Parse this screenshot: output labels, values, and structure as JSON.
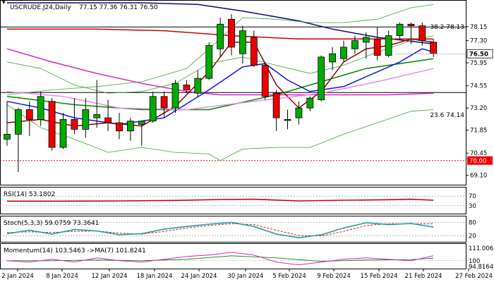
{
  "header": {
    "symbol": "USCRUDE.J24,Daily",
    "ohlc": "77.15 77.36 76.31 76.50"
  },
  "chart_data": {
    "type": "candlestick",
    "price_axis": {
      "ylim": [
        68.7,
        79.6
      ],
      "ticks": [
        "78.15",
        "77.30",
        "75.95",
        "74.55",
        "73.20",
        "71.85",
        "70.45",
        "69.10"
      ],
      "current_price_label": "76.50",
      "marker_label": "70.00"
    },
    "x_axis": {
      "date_labels": [
        "2 Jan 2024",
        "8 Jan 2024",
        "12 Jan 2024",
        "18 Jan 2024",
        "24 Jan 2024",
        "30 Jan 2024",
        "5 Feb 2024",
        "9 Feb 2024",
        "15 Feb 2024",
        "21 Feb 2024",
        "27 Feb 2024"
      ]
    },
    "levels": [
      {
        "label": "38.2 78.13",
        "value": 78.13,
        "color": "#000000"
      },
      {
        "label": "23.6 74.14",
        "value": 74.14,
        "color": "#000000"
      },
      {
        "label": "",
        "value": 70.0,
        "color": "#dd0000"
      }
    ],
    "candles": [
      {
        "o": 71.3,
        "h": 73.6,
        "l": 70.9,
        "c": 71.6
      },
      {
        "o": 71.6,
        "h": 73.2,
        "l": 69.3,
        "c": 73.1
      },
      {
        "o": 73.1,
        "h": 73.6,
        "l": 71.5,
        "c": 72.5
      },
      {
        "o": 72.5,
        "h": 74.2,
        "l": 72.1,
        "c": 73.9
      },
      {
        "o": 73.6,
        "h": 73.8,
        "l": 70.6,
        "c": 70.8
      },
      {
        "o": 70.8,
        "h": 72.9,
        "l": 70.7,
        "c": 72.5
      },
      {
        "o": 72.5,
        "h": 73.8,
        "l": 71.6,
        "c": 71.9
      },
      {
        "o": 71.9,
        "h": 73.8,
        "l": 71.4,
        "c": 73.1
      },
      {
        "o": 72.6,
        "h": 74.9,
        "l": 72.0,
        "c": 72.8
      },
      {
        "o": 72.6,
        "h": 73.7,
        "l": 71.8,
        "c": 72.3
      },
      {
        "o": 72.3,
        "h": 72.9,
        "l": 71.3,
        "c": 71.8
      },
      {
        "o": 71.8,
        "h": 72.6,
        "l": 71.2,
        "c": 72.4
      },
      {
        "o": 72.2,
        "h": 72.4,
        "l": 70.9,
        "c": 72.4
      },
      {
        "o": 72.4,
        "h": 74.2,
        "l": 72.3,
        "c": 73.9
      },
      {
        "o": 73.9,
        "h": 74.2,
        "l": 72.6,
        "c": 73.2
      },
      {
        "o": 73.2,
        "h": 74.9,
        "l": 72.9,
        "c": 74.7
      },
      {
        "o": 74.6,
        "h": 74.9,
        "l": 74.1,
        "c": 74.3
      },
      {
        "o": 74.1,
        "h": 75.5,
        "l": 73.9,
        "c": 75.0
      },
      {
        "o": 75.0,
        "h": 77.2,
        "l": 74.9,
        "c": 77.0
      },
      {
        "o": 76.8,
        "h": 78.7,
        "l": 76.3,
        "c": 78.3
      },
      {
        "o": 78.6,
        "h": 78.9,
        "l": 76.4,
        "c": 76.9
      },
      {
        "o": 76.5,
        "h": 78.2,
        "l": 75.9,
        "c": 77.9
      },
      {
        "o": 77.5,
        "h": 77.9,
        "l": 75.7,
        "c": 75.8
      },
      {
        "o": 75.8,
        "h": 76.0,
        "l": 73.7,
        "c": 73.9
      },
      {
        "o": 74.1,
        "h": 74.3,
        "l": 71.8,
        "c": 72.6
      },
      {
        "o": 72.5,
        "h": 73.1,
        "l": 71.9,
        "c": 72.5
      },
      {
        "o": 72.6,
        "h": 73.6,
        "l": 72.2,
        "c": 73.2
      },
      {
        "o": 73.2,
        "h": 73.9,
        "l": 73.0,
        "c": 73.8
      },
      {
        "o": 73.7,
        "h": 76.4,
        "l": 73.6,
        "c": 76.3
      },
      {
        "o": 76.0,
        "h": 76.9,
        "l": 75.5,
        "c": 76.5
      },
      {
        "o": 76.2,
        "h": 77.3,
        "l": 76.0,
        "c": 76.9
      },
      {
        "o": 76.8,
        "h": 77.6,
        "l": 76.5,
        "c": 77.3
      },
      {
        "o": 77.2,
        "h": 77.8,
        "l": 76.2,
        "c": 77.5
      },
      {
        "o": 77.4,
        "h": 78.1,
        "l": 76.1,
        "c": 76.4
      },
      {
        "o": 76.4,
        "h": 77.9,
        "l": 76.3,
        "c": 77.6
      },
      {
        "o": 77.6,
        "h": 78.4,
        "l": 77.4,
        "c": 78.3
      },
      {
        "o": 78.3,
        "h": 78.4,
        "l": 77.1,
        "c": 78.2
      },
      {
        "o": 78.2,
        "h": 78.4,
        "l": 77.0,
        "c": 77.3
      },
      {
        "o": 77.2,
        "h": 77.4,
        "l": 76.3,
        "c": 76.5
      }
    ],
    "overlays": [
      {
        "color": "#0a0a7a",
        "values": [
          [
            0,
            79.6
          ],
          [
            8,
            79.6
          ],
          [
            12,
            79.6
          ],
          [
            17,
            79.5
          ],
          [
            21,
            79.1
          ],
          [
            26,
            78.5
          ],
          [
            29,
            78.0
          ],
          [
            33,
            77.5
          ],
          [
            38,
            77.1
          ]
        ]
      },
      {
        "color": "#cc0000",
        "values": [
          [
            0,
            78.0
          ],
          [
            8,
            78.0
          ],
          [
            14,
            77.9
          ],
          [
            20,
            77.6
          ],
          [
            26,
            77.4
          ],
          [
            32,
            77.4
          ],
          [
            38,
            77.4
          ]
        ]
      },
      {
        "color": "#dd22cc",
        "values": [
          [
            0,
            76.8
          ],
          [
            4,
            76.0
          ],
          [
            8,
            75.3
          ],
          [
            12,
            74.7
          ],
          [
            16,
            74.2
          ],
          [
            19,
            74.0
          ],
          [
            24,
            74.0
          ],
          [
            29,
            74.0
          ],
          [
            34,
            74.0
          ],
          [
            38,
            74.1
          ]
        ]
      },
      {
        "color": "#008800",
        "values": [
          [
            0,
            73.9
          ],
          [
            6,
            73.4
          ],
          [
            12,
            73.1
          ],
          [
            18,
            73.1
          ],
          [
            24,
            74.0
          ],
          [
            28,
            74.8
          ],
          [
            32,
            75.6
          ],
          [
            36,
            76.0
          ],
          [
            38,
            76.2
          ]
        ]
      },
      {
        "color": "#1111ee",
        "values": [
          [
            0,
            73.6
          ],
          [
            3,
            73.2
          ],
          [
            6,
            72.6
          ],
          [
            10,
            72.2
          ],
          [
            14,
            72.6
          ],
          [
            18,
            74.3
          ],
          [
            21,
            75.7
          ],
          [
            23,
            75.9
          ],
          [
            25,
            74.9
          ],
          [
            27,
            74.2
          ],
          [
            30,
            74.5
          ],
          [
            33,
            75.4
          ],
          [
            35,
            76.0
          ],
          [
            37,
            76.8
          ],
          [
            38,
            76.6
          ]
        ]
      },
      {
        "color": "#8b0000",
        "values": [
          [
            0,
            72.3
          ],
          [
            3,
            72.5
          ],
          [
            6,
            72.1
          ],
          [
            9,
            72.3
          ],
          [
            12,
            72.1
          ],
          [
            15,
            73.3
          ],
          [
            18,
            75.4
          ],
          [
            20,
            77.2
          ],
          [
            22,
            77.2
          ],
          [
            24,
            74.6
          ],
          [
            26,
            73.2
          ],
          [
            28,
            74.2
          ],
          [
            30,
            76.0
          ],
          [
            32,
            76.8
          ],
          [
            34,
            77.0
          ],
          [
            36,
            77.4
          ],
          [
            38,
            77.2
          ]
        ]
      },
      {
        "color": "#33aa33",
        "width": 0.8,
        "values": [
          [
            0,
            74.0
          ],
          [
            4,
            74.3
          ],
          [
            8,
            74.5
          ],
          [
            12,
            74.8
          ],
          [
            16,
            75.6
          ],
          [
            19,
            77.4
          ],
          [
            21,
            78.7
          ],
          [
            24,
            78.6
          ],
          [
            27,
            78.4
          ],
          [
            30,
            78.4
          ],
          [
            33,
            78.6
          ],
          [
            36,
            79.3
          ],
          [
            38,
            79.5
          ]
        ]
      },
      {
        "color": "#33aa33",
        "width": 0.8,
        "values": [
          [
            0,
            76.0
          ],
          [
            3,
            75.6
          ],
          [
            6,
            74.6
          ],
          [
            9,
            74.1
          ],
          [
            12,
            74.2
          ],
          [
            15,
            74.7
          ],
          [
            18,
            75.9
          ],
          [
            21,
            76.3
          ],
          [
            24,
            75.8
          ],
          [
            27,
            75.3
          ],
          [
            30,
            75.8
          ],
          [
            33,
            76.6
          ],
          [
            36,
            77.3
          ],
          [
            38,
            77.6
          ]
        ]
      },
      {
        "color": "#33aa33",
        "width": 0.8,
        "values": [
          [
            0,
            73.4
          ],
          [
            3,
            72.0
          ],
          [
            6,
            71.3
          ],
          [
            9,
            70.5
          ],
          [
            12,
            70.8
          ],
          [
            15,
            70.5
          ],
          [
            18,
            70.4
          ],
          [
            19,
            70.0
          ],
          [
            21,
            70.7
          ],
          [
            24,
            70.8
          ],
          [
            27,
            70.8
          ],
          [
            30,
            71.6
          ],
          [
            33,
            72.3
          ],
          [
            36,
            73.0
          ],
          [
            38,
            73.1
          ]
        ]
      },
      {
        "color": "#ee88ee",
        "values": [
          [
            0,
            74.2
          ],
          [
            5,
            73.9
          ],
          [
            10,
            73.2
          ],
          [
            16,
            73.1
          ],
          [
            22,
            73.6
          ],
          [
            28,
            74.1
          ],
          [
            33,
            74.8
          ],
          [
            38,
            75.6
          ]
        ]
      }
    ],
    "rsi": {
      "label": "RSI(14) 53.1802",
      "ticks": [
        "70",
        "30"
      ],
      "levels": [
        70,
        30
      ],
      "color": "#cc0000",
      "values": [
        [
          0,
          49
        ],
        [
          5,
          49
        ],
        [
          10,
          50
        ],
        [
          15,
          52
        ],
        [
          19,
          56
        ],
        [
          22,
          57
        ],
        [
          26,
          50
        ],
        [
          30,
          53
        ],
        [
          34,
          55
        ],
        [
          36,
          57
        ],
        [
          38,
          53
        ]
      ]
    },
    "stoch": {
      "label": "Stoch(5,3,3) 59.0759 73.3641",
      "ticks": [
        "80",
        "20"
      ],
      "levels": [
        80,
        20
      ],
      "main_color": "#20a0a0",
      "signal_color": "#cc0000",
      "main": [
        [
          0,
          30
        ],
        [
          2,
          45
        ],
        [
          4,
          28
        ],
        [
          6,
          48
        ],
        [
          8,
          42
        ],
        [
          10,
          25
        ],
        [
          12,
          30
        ],
        [
          14,
          50
        ],
        [
          16,
          62
        ],
        [
          18,
          72
        ],
        [
          20,
          80
        ],
        [
          22,
          62
        ],
        [
          24,
          28
        ],
        [
          26,
          12
        ],
        [
          28,
          25
        ],
        [
          30,
          55
        ],
        [
          32,
          78
        ],
        [
          34,
          70
        ],
        [
          36,
          75
        ],
        [
          38,
          59
        ]
      ],
      "signal": [
        [
          0,
          35
        ],
        [
          2,
          38
        ],
        [
          4,
          35
        ],
        [
          6,
          40
        ],
        [
          8,
          42
        ],
        [
          10,
          32
        ],
        [
          12,
          28
        ],
        [
          14,
          40
        ],
        [
          16,
          55
        ],
        [
          18,
          66
        ],
        [
          20,
          74
        ],
        [
          22,
          70
        ],
        [
          24,
          45
        ],
        [
          26,
          22
        ],
        [
          28,
          20
        ],
        [
          30,
          40
        ],
        [
          32,
          66
        ],
        [
          34,
          74
        ],
        [
          36,
          73
        ],
        [
          38,
          73
        ]
      ]
    },
    "momentum": {
      "label": "Momentum(14) 103.5463  ->MA(7) 101.8241",
      "ticks": [
        "111.0068",
        "100",
        "94.8164"
      ],
      "level": 100,
      "main_color": "#dd22cc",
      "ma_color": "#008800",
      "main": [
        [
          0,
          100
        ],
        [
          2,
          99
        ],
        [
          4,
          101
        ],
        [
          6,
          99
        ],
        [
          8,
          102
        ],
        [
          10,
          100
        ],
        [
          12,
          99
        ],
        [
          14,
          101
        ],
        [
          16,
          103
        ],
        [
          18,
          104
        ],
        [
          20,
          106
        ],
        [
          22,
          104
        ],
        [
          24,
          99
        ],
        [
          26,
          97
        ],
        [
          28,
          99
        ],
        [
          30,
          101
        ],
        [
          32,
          102
        ],
        [
          34,
          101
        ],
        [
          36,
          100
        ],
        [
          38,
          103.5
        ]
      ],
      "ma": [
        [
          0,
          100
        ],
        [
          4,
          100
        ],
        [
          8,
          100.5
        ],
        [
          12,
          100
        ],
        [
          16,
          101
        ],
        [
          20,
          103.5
        ],
        [
          24,
          102
        ],
        [
          28,
          99.5
        ],
        [
          32,
          100.5
        ],
        [
          36,
          100.8
        ],
        [
          38,
          101.8
        ]
      ]
    }
  }
}
